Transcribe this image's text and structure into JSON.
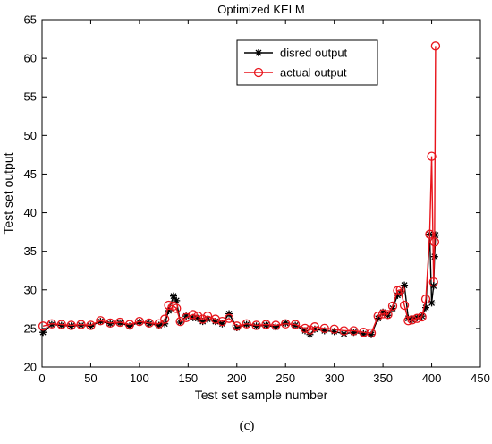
{
  "chart_data": {
    "type": "line",
    "title": "Optimized KELM",
    "xlabel": "Test set sample number",
    "ylabel": "Test set output",
    "xlim": [
      0,
      450
    ],
    "ylim": [
      20,
      65
    ],
    "x_ticks": [
      0,
      50,
      100,
      150,
      200,
      250,
      300,
      350,
      400,
      450
    ],
    "y_ticks": [
      20,
      25,
      30,
      35,
      40,
      45,
      50,
      55,
      60,
      65
    ],
    "grid": false,
    "legend_position": "top-right",
    "caption": "(c)",
    "series": [
      {
        "name": "disred output",
        "marker": "star",
        "color": "#000000",
        "x": [
          1,
          10,
          20,
          30,
          40,
          50,
          60,
          70,
          80,
          90,
          100,
          110,
          120,
          126,
          130,
          135,
          138,
          142,
          148,
          155,
          160,
          165,
          170,
          178,
          185,
          192,
          200,
          210,
          220,
          230,
          240,
          250,
          260,
          270,
          275,
          280,
          290,
          300,
          310,
          320,
          330,
          338,
          345,
          350,
          355,
          360,
          365,
          368,
          372,
          376,
          380,
          385,
          390,
          394,
          398,
          400,
          402,
          403,
          404
        ],
        "values": [
          24.5,
          25.5,
          25.4,
          25.3,
          25.4,
          25.3,
          25.9,
          25.6,
          25.7,
          25.3,
          25.8,
          25.6,
          25.4,
          25.6,
          27.3,
          29.2,
          28.6,
          25.8,
          26.6,
          26.4,
          26.3,
          25.9,
          26.2,
          25.9,
          25.6,
          26.9,
          25.1,
          25.5,
          25.3,
          25.4,
          25.2,
          25.7,
          25.4,
          24.7,
          24.2,
          24.9,
          24.7,
          24.6,
          24.3,
          24.5,
          24.3,
          24.2,
          26.3,
          27.1,
          26.7,
          27.6,
          29.3,
          29.6,
          30.6,
          26.3,
          26.1,
          26.4,
          26.6,
          27.7,
          37.2,
          28.3,
          30.5,
          34.3,
          37.1
        ]
      },
      {
        "name": "actual output",
        "marker": "circle",
        "color": "#e8141b",
        "x": [
          1,
          10,
          20,
          30,
          40,
          50,
          60,
          70,
          80,
          90,
          100,
          110,
          120,
          126,
          130,
          135,
          138,
          142,
          148,
          155,
          160,
          165,
          170,
          178,
          185,
          192,
          200,
          210,
          220,
          230,
          240,
          250,
          260,
          270,
          275,
          280,
          290,
          300,
          310,
          320,
          330,
          338,
          345,
          350,
          355,
          360,
          365,
          368,
          372,
          376,
          380,
          385,
          390,
          394,
          398,
          400,
          402,
          403,
          404
        ],
        "values": [
          25.3,
          25.6,
          25.5,
          25.4,
          25.5,
          25.4,
          26.0,
          25.7,
          25.8,
          25.5,
          25.9,
          25.7,
          25.6,
          26.2,
          28.0,
          27.9,
          27.6,
          25.9,
          26.4,
          26.8,
          26.6,
          26.2,
          26.6,
          26.2,
          25.9,
          26.3,
          25.3,
          25.6,
          25.4,
          25.5,
          25.4,
          25.6,
          25.5,
          25.0,
          24.8,
          25.2,
          25.0,
          24.9,
          24.7,
          24.7,
          24.5,
          24.4,
          26.6,
          26.9,
          26.8,
          27.9,
          29.9,
          30.0,
          28.0,
          26.0,
          26.1,
          26.3,
          26.5,
          28.8,
          37.2,
          47.3,
          31.0,
          36.2,
          61.6
        ]
      }
    ]
  }
}
